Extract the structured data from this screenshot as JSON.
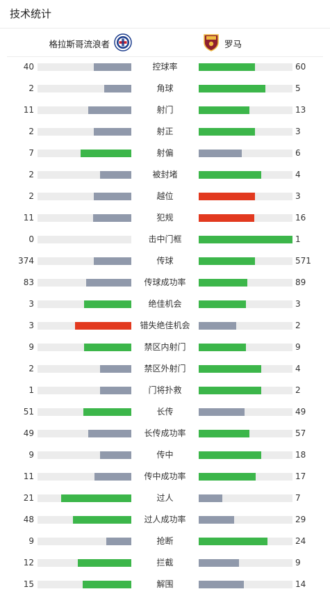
{
  "header": {
    "title": "技术统计"
  },
  "teams": {
    "home": {
      "name": "格拉斯哥流浪者",
      "logo_icon": "rangers-crest-icon"
    },
    "away": {
      "name": "罗马",
      "logo_icon": "roma-crest-icon"
    }
  },
  "colors": {
    "neutral": "#9099ab",
    "better": "#3cb64a",
    "foul": "#e2391f",
    "track": "#ececec"
  },
  "stats": [
    {
      "label": "控球率",
      "home": "40",
      "away": "60",
      "home_fill": 0.4,
      "away_fill": 0.6,
      "home_color": "gray",
      "away_color": "green"
    },
    {
      "label": "角球",
      "home": "2",
      "away": "5",
      "home_fill": 0.29,
      "away_fill": 0.71,
      "home_color": "gray",
      "away_color": "green"
    },
    {
      "label": "射门",
      "home": "11",
      "away": "13",
      "home_fill": 0.46,
      "away_fill": 0.54,
      "home_color": "gray",
      "away_color": "green"
    },
    {
      "label": "射正",
      "home": "2",
      "away": "3",
      "home_fill": 0.4,
      "away_fill": 0.6,
      "home_color": "gray",
      "away_color": "green"
    },
    {
      "label": "射偏",
      "home": "7",
      "away": "6",
      "home_fill": 0.54,
      "away_fill": 0.46,
      "home_color": "green",
      "away_color": "gray"
    },
    {
      "label": "被封堵",
      "home": "2",
      "away": "4",
      "home_fill": 0.33,
      "away_fill": 0.67,
      "home_color": "gray",
      "away_color": "green"
    },
    {
      "label": "越位",
      "home": "2",
      "away": "3",
      "home_fill": 0.4,
      "away_fill": 0.6,
      "home_color": "gray",
      "away_color": "red"
    },
    {
      "label": "犯规",
      "home": "11",
      "away": "16",
      "home_fill": 0.41,
      "away_fill": 0.59,
      "home_color": "gray",
      "away_color": "red"
    },
    {
      "label": "击中门框",
      "home": "0",
      "away": "1",
      "home_fill": 0.0,
      "away_fill": 1.0,
      "home_color": "gray",
      "away_color": "green"
    },
    {
      "label": "传球",
      "home": "374",
      "away": "571",
      "home_fill": 0.4,
      "away_fill": 0.6,
      "home_color": "gray",
      "away_color": "green"
    },
    {
      "label": "传球成功率",
      "home": "83",
      "away": "89",
      "home_fill": 0.48,
      "away_fill": 0.52,
      "home_color": "gray",
      "away_color": "green"
    },
    {
      "label": "绝佳机会",
      "home": "3",
      "away": "3",
      "home_fill": 0.5,
      "away_fill": 0.5,
      "home_color": "green",
      "away_color": "green"
    },
    {
      "label": "错失绝佳机会",
      "home": "3",
      "away": "2",
      "home_fill": 0.6,
      "away_fill": 0.4,
      "home_color": "red",
      "away_color": "gray"
    },
    {
      "label": "禁区内射门",
      "home": "9",
      "away": "9",
      "home_fill": 0.5,
      "away_fill": 0.5,
      "home_color": "green",
      "away_color": "green"
    },
    {
      "label": "禁区外射门",
      "home": "2",
      "away": "4",
      "home_fill": 0.33,
      "away_fill": 0.67,
      "home_color": "gray",
      "away_color": "green"
    },
    {
      "label": "门将扑救",
      "home": "1",
      "away": "2",
      "home_fill": 0.33,
      "away_fill": 0.67,
      "home_color": "gray",
      "away_color": "green"
    },
    {
      "label": "长传",
      "home": "51",
      "away": "49",
      "home_fill": 0.51,
      "away_fill": 0.49,
      "home_color": "green",
      "away_color": "gray"
    },
    {
      "label": "长传成功率",
      "home": "49",
      "away": "57",
      "home_fill": 0.46,
      "away_fill": 0.54,
      "home_color": "gray",
      "away_color": "green"
    },
    {
      "label": "传中",
      "home": "9",
      "away": "18",
      "home_fill": 0.33,
      "away_fill": 0.67,
      "home_color": "gray",
      "away_color": "green"
    },
    {
      "label": "传中成功率",
      "home": "11",
      "away": "17",
      "home_fill": 0.39,
      "away_fill": 0.61,
      "home_color": "gray",
      "away_color": "green"
    },
    {
      "label": "过人",
      "home": "21",
      "away": "7",
      "home_fill": 0.75,
      "away_fill": 0.25,
      "home_color": "green",
      "away_color": "gray"
    },
    {
      "label": "过人成功率",
      "home": "48",
      "away": "29",
      "home_fill": 0.62,
      "away_fill": 0.38,
      "home_color": "green",
      "away_color": "gray"
    },
    {
      "label": "抢断",
      "home": "9",
      "away": "24",
      "home_fill": 0.27,
      "away_fill": 0.73,
      "home_color": "gray",
      "away_color": "green"
    },
    {
      "label": "拦截",
      "home": "12",
      "away": "9",
      "home_fill": 0.57,
      "away_fill": 0.43,
      "home_color": "green",
      "away_color": "gray"
    },
    {
      "label": "解围",
      "home": "15",
      "away": "14",
      "home_fill": 0.52,
      "away_fill": 0.48,
      "home_color": "green",
      "away_color": "gray"
    }
  ]
}
